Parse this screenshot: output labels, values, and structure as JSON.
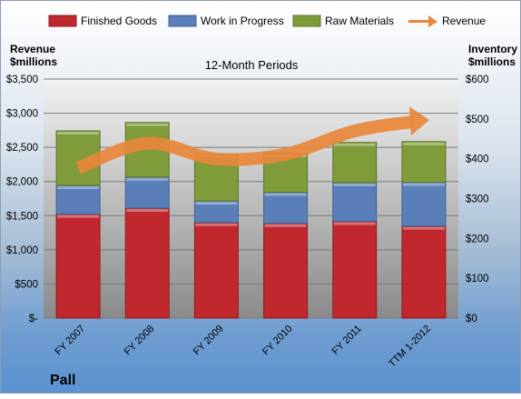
{
  "company": "Pall",
  "chart_data": {
    "type": "bar",
    "stacked": true,
    "title": "12-Month Periods",
    "categories": [
      "FY 2007",
      "FY 2008",
      "FY 2009",
      "FY 2010",
      "FY 2011",
      "TTM 1-2012"
    ],
    "left_axis": {
      "label": "Revenue\n$millions",
      "ylim": [
        0,
        3500
      ],
      "ticks": [
        0,
        500,
        1000,
        1500,
        2000,
        2500,
        3000,
        3500
      ],
      "tick_labels": [
        "$-",
        "$500",
        "$1,000",
        "$1,500",
        "$2,000",
        "$2,500",
        "$3,000",
        "$3,500"
      ]
    },
    "right_axis": {
      "label": "Inventory\n$millions",
      "ylim": [
        0,
        600
      ],
      "ticks": [
        0,
        100,
        200,
        300,
        400,
        500,
        600
      ],
      "tick_labels": [
        "$0",
        "$100",
        "$200",
        "$300",
        "$400",
        "$500",
        "$600"
      ]
    },
    "series": [
      {
        "name": "Finished Goods",
        "axis": "right",
        "type": "bar",
        "color": "#c0282d",
        "values": [
          261,
          276,
          240,
          238,
          243,
          231
        ]
      },
      {
        "name": "Work in Progress",
        "axis": "right",
        "type": "bar",
        "color": "#5a7fb8",
        "values": [
          72,
          78,
          54,
          78,
          97,
          110
        ]
      },
      {
        "name": "Raw Materials",
        "axis": "right",
        "type": "bar",
        "color": "#7f9b3a",
        "values": [
          137,
          137,
          117,
          97,
          101,
          102
        ]
      },
      {
        "name": "Revenue",
        "axis": "left",
        "type": "line",
        "color": "#e8873a",
        "values": [
          2200,
          2560,
          2330,
          2400,
          2740,
          2900
        ]
      }
    ],
    "grid": "horizontal",
    "legend": "top"
  }
}
